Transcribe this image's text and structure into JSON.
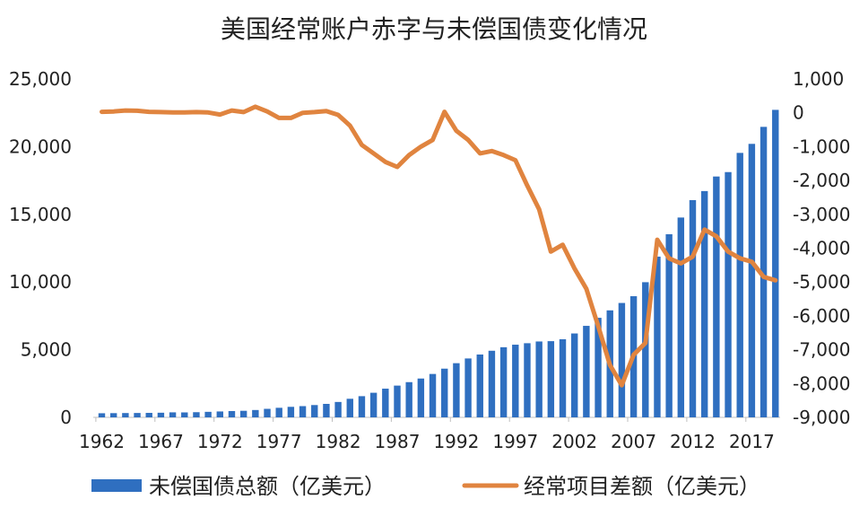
{
  "chart_data": {
    "type": "bar+line",
    "title": "美国经常账户赤字与未偿国债变化情况",
    "colors": {
      "bars": "#2f6fc0",
      "line": "#e0843f"
    },
    "legend": {
      "position": "bottom"
    },
    "left_axis": {
      "range": [
        0,
        25000
      ],
      "ticks": [
        "0",
        "5,000",
        "10,000",
        "15,000",
        "20,000",
        "25,000"
      ],
      "tick_values": [
        0,
        5000,
        10000,
        15000,
        20000,
        25000
      ]
    },
    "right_axis": {
      "range": [
        -9000,
        1000
      ],
      "ticks": [
        "-9,000",
        "-8,000",
        "-7,000",
        "-6,000",
        "-5,000",
        "-4,000",
        "-3,000",
        "-2,000",
        "-1,000",
        "0",
        "1,000"
      ],
      "tick_values": [
        -9000,
        -8000,
        -7000,
        -6000,
        -5000,
        -4000,
        -3000,
        -2000,
        -1000,
        0,
        1000
      ]
    },
    "x_tick_labels": [
      "1962",
      "1967",
      "1972",
      "1977",
      "1982",
      "1987",
      "1992",
      "1997",
      "2002",
      "2007",
      "2012",
      "2017"
    ],
    "x": [
      1962,
      1963,
      1964,
      1965,
      1966,
      1967,
      1968,
      1969,
      1970,
      1971,
      1972,
      1973,
      1974,
      1975,
      1976,
      1977,
      1978,
      1979,
      1980,
      1981,
      1982,
      1983,
      1984,
      1985,
      1986,
      1987,
      1988,
      1989,
      1990,
      1991,
      1992,
      1993,
      1994,
      1995,
      1996,
      1997,
      1998,
      1999,
      2000,
      2001,
      2002,
      2003,
      2004,
      2005,
      2006,
      2007,
      2008,
      2009,
      2010,
      2011,
      2012,
      2013,
      2014,
      2015,
      2016,
      2017,
      2018,
      2019
    ],
    "series": [
      {
        "name": "未偿国债总额（亿美元）",
        "type": "bar",
        "axis": "left",
        "values": [
          303,
          311,
          318,
          323,
          330,
          342,
          370,
          365,
          381,
          408,
          436,
          466,
          484,
          542,
          629,
          706,
          777,
          829,
          909,
          995,
          1137,
          1372,
          1565,
          1817,
          2120,
          2346,
          2601,
          2868,
          3206,
          3598,
          4002,
          4351,
          4643,
          4921,
          5181,
          5369,
          5478,
          5606,
          5629,
          5770,
          6198,
          6760,
          7355,
          7905,
          8451,
          8951,
          9986,
          11876,
          13529,
          14764,
          16051,
          16719,
          17794,
          18120,
          19539,
          20206,
          21462,
          22719
        ]
      },
      {
        "name": "经常项目差额（亿美元）",
        "type": "line",
        "axis": "right",
        "values": [
          30,
          40,
          70,
          60,
          30,
          20,
          10,
          10,
          20,
          10,
          -50,
          70,
          20,
          180,
          40,
          -150,
          -150,
          0,
          20,
          50,
          -60,
          -380,
          -950,
          -1200,
          -1450,
          -1600,
          -1250,
          -1000,
          -800,
          30,
          -530,
          -800,
          -1200,
          -1130,
          -1250,
          -1400,
          -2150,
          -2850,
          -4100,
          -3900,
          -4600,
          -5200,
          -6300,
          -7450,
          -8050,
          -7150,
          -6800,
          -3750,
          -4300,
          -4450,
          -4250,
          -3450,
          -3650,
          -4100,
          -4300,
          -4400,
          -4850,
          -4950
        ]
      }
    ]
  }
}
